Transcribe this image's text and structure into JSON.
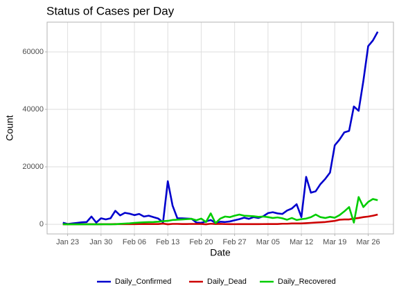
{
  "chart_data": {
    "type": "line",
    "title": "Status of Cases per Day",
    "xlabel": "Date",
    "ylabel": "Count",
    "x": [
      "Jan 22",
      "Jan 23",
      "Jan 24",
      "Jan 25",
      "Jan 26",
      "Jan 27",
      "Jan 28",
      "Jan 29",
      "Jan 30",
      "Jan 31",
      "Feb 01",
      "Feb 02",
      "Feb 03",
      "Feb 04",
      "Feb 05",
      "Feb 06",
      "Feb 07",
      "Feb 08",
      "Feb 09",
      "Feb 10",
      "Feb 11",
      "Feb 12",
      "Feb 13",
      "Feb 14",
      "Feb 15",
      "Feb 16",
      "Feb 17",
      "Feb 18",
      "Feb 19",
      "Feb 20",
      "Feb 21",
      "Feb 22",
      "Feb 23",
      "Feb 24",
      "Feb 25",
      "Feb 26",
      "Feb 27",
      "Feb 28",
      "Feb 29",
      "Mar 01",
      "Mar 02",
      "Mar 03",
      "Mar 04",
      "Mar 05",
      "Mar 06",
      "Mar 07",
      "Mar 08",
      "Mar 09",
      "Mar 10",
      "Mar 11",
      "Mar 12",
      "Mar 13",
      "Mar 14",
      "Mar 15",
      "Mar 16",
      "Mar 17",
      "Mar 18",
      "Mar 19",
      "Mar 20",
      "Mar 21",
      "Mar 22",
      "Mar 23",
      "Mar 24",
      "Mar 25",
      "Mar 26",
      "Mar 27",
      "Mar 28"
    ],
    "xticks": [
      "Jan 23",
      "Jan 30",
      "Feb 06",
      "Feb 13",
      "Feb 20",
      "Feb 27",
      "Mar 05",
      "Mar 12",
      "Mar 19",
      "Mar 26"
    ],
    "ylim": [
      -3350,
      70350
    ],
    "yticks": [
      0,
      20000,
      40000,
      60000
    ],
    "grid": true,
    "legend": "bottom",
    "series": [
      {
        "name": "Daily_Confirmed",
        "color": "#0000cd",
        "values": [
          555,
          100,
          300,
          500,
          700,
          800,
          2700,
          600,
          2100,
          1700,
          2100,
          4700,
          3100,
          4000,
          3700,
          3200,
          3600,
          2700,
          3000,
          2500,
          2000,
          700,
          15000,
          6500,
          2100,
          2100,
          2000,
          1900,
          600,
          500,
          1000,
          1500,
          500,
          900,
          800,
          1000,
          1400,
          1800,
          2300,
          1900,
          2500,
          2200,
          2800,
          3900,
          4200,
          3800,
          3600,
          4800,
          5500,
          7000,
          2500,
          16500,
          11000,
          11500,
          14000,
          15800,
          18000,
          27500,
          29500,
          32000,
          32500,
          41000,
          39500,
          50000,
          62000,
          64000,
          67000
        ]
      },
      {
        "name": "Daily_Dead",
        "color": "#cd0000",
        "values": [
          17,
          1,
          8,
          16,
          14,
          26,
          49,
          2,
          38,
          42,
          46,
          103,
          64,
          66,
          72,
          73,
          86,
          89,
          97,
          108,
          97,
          254,
          13,
          143,
          142,
          106,
          98,
          139,
          115,
          125,
          4,
          200,
          100,
          150,
          80,
          70,
          50,
          60,
          80,
          58,
          70,
          70,
          80,
          100,
          100,
          100,
          200,
          200,
          300,
          300,
          300,
          400,
          500,
          600,
          700,
          800,
          1000,
          1200,
          1600,
          1700,
          1700,
          2000,
          2200,
          2500,
          2700,
          3000,
          3400
        ]
      },
      {
        "name": "Daily_Recovered",
        "color": "#00cd00",
        "values": [
          28,
          2,
          6,
          3,
          10,
          3,
          13,
          5,
          15,
          24,
          9,
          43,
          157,
          262,
          350,
          500,
          600,
          700,
          750,
          800,
          900,
          1100,
          1200,
          1500,
          1600,
          1700,
          1800,
          1900,
          1400,
          2000,
          800,
          3800,
          400,
          2000,
          2700,
          2500,
          3000,
          3400,
          3000,
          2900,
          2800,
          2600,
          2700,
          2500,
          2200,
          2400,
          2100,
          1600,
          2200,
          1500,
          1800,
          2000,
          2500,
          3400,
          2500,
          2200,
          2600,
          2300,
          3200,
          4500,
          6000,
          600,
          9500,
          6000,
          7800,
          8800,
          8400
        ]
      }
    ]
  }
}
